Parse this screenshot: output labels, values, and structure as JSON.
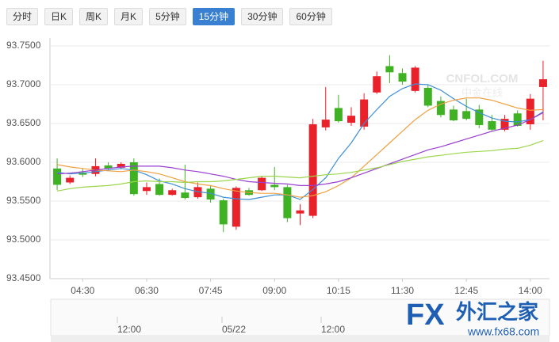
{
  "toolbar": {
    "tabs": [
      "分时",
      "日K",
      "周K",
      "月K",
      "5分钟",
      "15分钟",
      "30分钟",
      "60分钟"
    ],
    "active": 5
  },
  "chart_data": {
    "type": "candlestick",
    "categories": [
      null,
      null,
      "04:30",
      null,
      null,
      null,
      null,
      "06:30",
      null,
      null,
      null,
      null,
      "07:45",
      null,
      null,
      null,
      null,
      "09:00",
      null,
      null,
      null,
      null,
      "10:15",
      null,
      null,
      null,
      null,
      "11:30",
      null,
      null,
      null,
      null,
      "12:45",
      null,
      null,
      null,
      null,
      "14:00",
      null
    ],
    "open": [
      93.592,
      93.574,
      93.587,
      93.585,
      93.596,
      93.593,
      93.6,
      93.563,
      93.572,
      93.558,
      93.561,
      93.555,
      93.566,
      93.551,
      93.517,
      93.564,
      93.564,
      93.571,
      93.568,
      93.534,
      93.531,
      93.645,
      93.67,
      93.651,
      93.646,
      93.69,
      93.724,
      93.715,
      93.692,
      93.696,
      93.679,
      93.668,
      93.666,
      93.668,
      93.653,
      93.642,
      93.663,
      93.649,
      93.697
    ],
    "high": [
      93.605,
      93.583,
      93.592,
      93.605,
      93.6,
      93.6,
      93.605,
      93.574,
      93.579,
      93.566,
      93.597,
      93.574,
      93.57,
      93.553,
      93.569,
      93.567,
      93.582,
      93.594,
      93.571,
      93.546,
      93.656,
      93.697,
      93.687,
      93.671,
      93.689,
      93.717,
      93.738,
      93.721,
      93.724,
      93.7,
      93.685,
      93.673,
      93.682,
      93.674,
      93.661,
      93.661,
      93.667,
      93.688,
      93.731
    ],
    "low": [
      93.564,
      93.572,
      93.581,
      93.582,
      93.59,
      93.591,
      93.557,
      93.558,
      93.557,
      93.557,
      93.552,
      93.553,
      93.548,
      93.51,
      93.513,
      93.557,
      93.563,
      93.564,
      93.523,
      93.519,
      93.528,
      93.641,
      93.651,
      93.647,
      93.642,
      93.688,
      93.702,
      93.7,
      93.69,
      93.671,
      93.658,
      93.653,
      93.654,
      93.644,
      93.64,
      93.64,
      93.646,
      93.642,
      93.654
    ],
    "close": [
      93.571,
      93.58,
      93.584,
      93.595,
      93.592,
      93.598,
      93.559,
      93.568,
      93.558,
      93.564,
      93.554,
      93.568,
      93.552,
      93.52,
      93.567,
      93.558,
      93.58,
      93.568,
      93.528,
      93.538,
      93.649,
      93.655,
      93.653,
      93.66,
      93.681,
      93.711,
      93.716,
      93.704,
      93.722,
      93.673,
      93.661,
      93.654,
      93.656,
      93.648,
      93.642,
      93.656,
      93.647,
      93.682,
      93.707
    ],
    "up_color": "#e8212b",
    "down_color": "#3fb224",
    "lines": [
      {
        "color": "#3d8fd6",
        "values": [
          93.587,
          93.585,
          93.586,
          93.588,
          93.59,
          93.592,
          93.59,
          93.584,
          93.576,
          93.572,
          93.566,
          93.562,
          93.56,
          93.555,
          93.553,
          93.552,
          93.555,
          93.558,
          93.558,
          93.552,
          93.565,
          93.58,
          93.605,
          93.625,
          93.65,
          93.668,
          93.685,
          93.695,
          93.701,
          93.7,
          93.693,
          93.682,
          93.672,
          93.664,
          93.657,
          93.653,
          93.652,
          93.655,
          93.665
        ]
      },
      {
        "color": "#f0a040",
        "values": [
          93.597,
          93.594,
          93.592,
          93.59,
          93.589,
          93.588,
          93.59,
          93.588,
          93.585,
          93.58,
          93.575,
          93.572,
          93.57,
          93.566,
          93.563,
          93.561,
          93.56,
          93.56,
          93.558,
          93.555,
          93.557,
          93.562,
          93.57,
          93.58,
          93.595,
          93.61,
          93.625,
          93.64,
          93.655,
          93.667,
          93.675,
          93.68,
          93.683,
          93.683,
          93.68,
          93.675,
          93.67,
          93.667,
          93.668
        ]
      },
      {
        "color": "#9b3fd0",
        "values": [
          93.585,
          93.586,
          93.588,
          93.59,
          93.592,
          93.594,
          93.595,
          93.595,
          93.595,
          93.593,
          93.59,
          93.588,
          93.585,
          93.582,
          93.578,
          93.575,
          93.574,
          93.573,
          93.572,
          93.57,
          93.57,
          93.572,
          93.575,
          93.58,
          93.586,
          93.592,
          93.598,
          93.604,
          93.61,
          93.616,
          93.62,
          93.625,
          93.63,
          93.635,
          93.64,
          93.644,
          93.648,
          93.655,
          93.664
        ]
      },
      {
        "color": "#9ad64a",
        "values": [
          93.563,
          93.566,
          93.568,
          93.569,
          93.57,
          93.572,
          93.575,
          93.576,
          93.575,
          93.575,
          93.574,
          93.575,
          93.575,
          93.576,
          93.578,
          93.58,
          93.582,
          93.582,
          93.581,
          93.58,
          93.582,
          93.584,
          93.585,
          93.587,
          93.59,
          93.593,
          93.597,
          93.601,
          93.604,
          93.607,
          93.609,
          93.611,
          93.613,
          93.614,
          93.615,
          93.617,
          93.618,
          93.622,
          93.628
        ]
      }
    ],
    "ylim": [
      93.45,
      93.75
    ],
    "yticks": [
      {
        "value": 93.45,
        "label": "93.4500"
      },
      {
        "value": 93.5,
        "label": "93.5000"
      },
      {
        "value": 93.55,
        "label": "93.5500"
      },
      {
        "value": 93.6,
        "label": "93.6000"
      },
      {
        "value": 93.65,
        "label": "93.6500"
      },
      {
        "value": 93.7,
        "label": "93.7000"
      },
      {
        "value": 93.75,
        "label": "93.7500"
      }
    ],
    "grid": true
  },
  "navigator": {
    "labels": [
      "12:00",
      "05/22",
      "12:00"
    ]
  },
  "watermarks": {
    "site": "CNFOL.COM",
    "site_cn": "中金在线",
    "brand_fx": "FX",
    "brand_cn": "外汇之家",
    "url": "www.fx68.com"
  }
}
